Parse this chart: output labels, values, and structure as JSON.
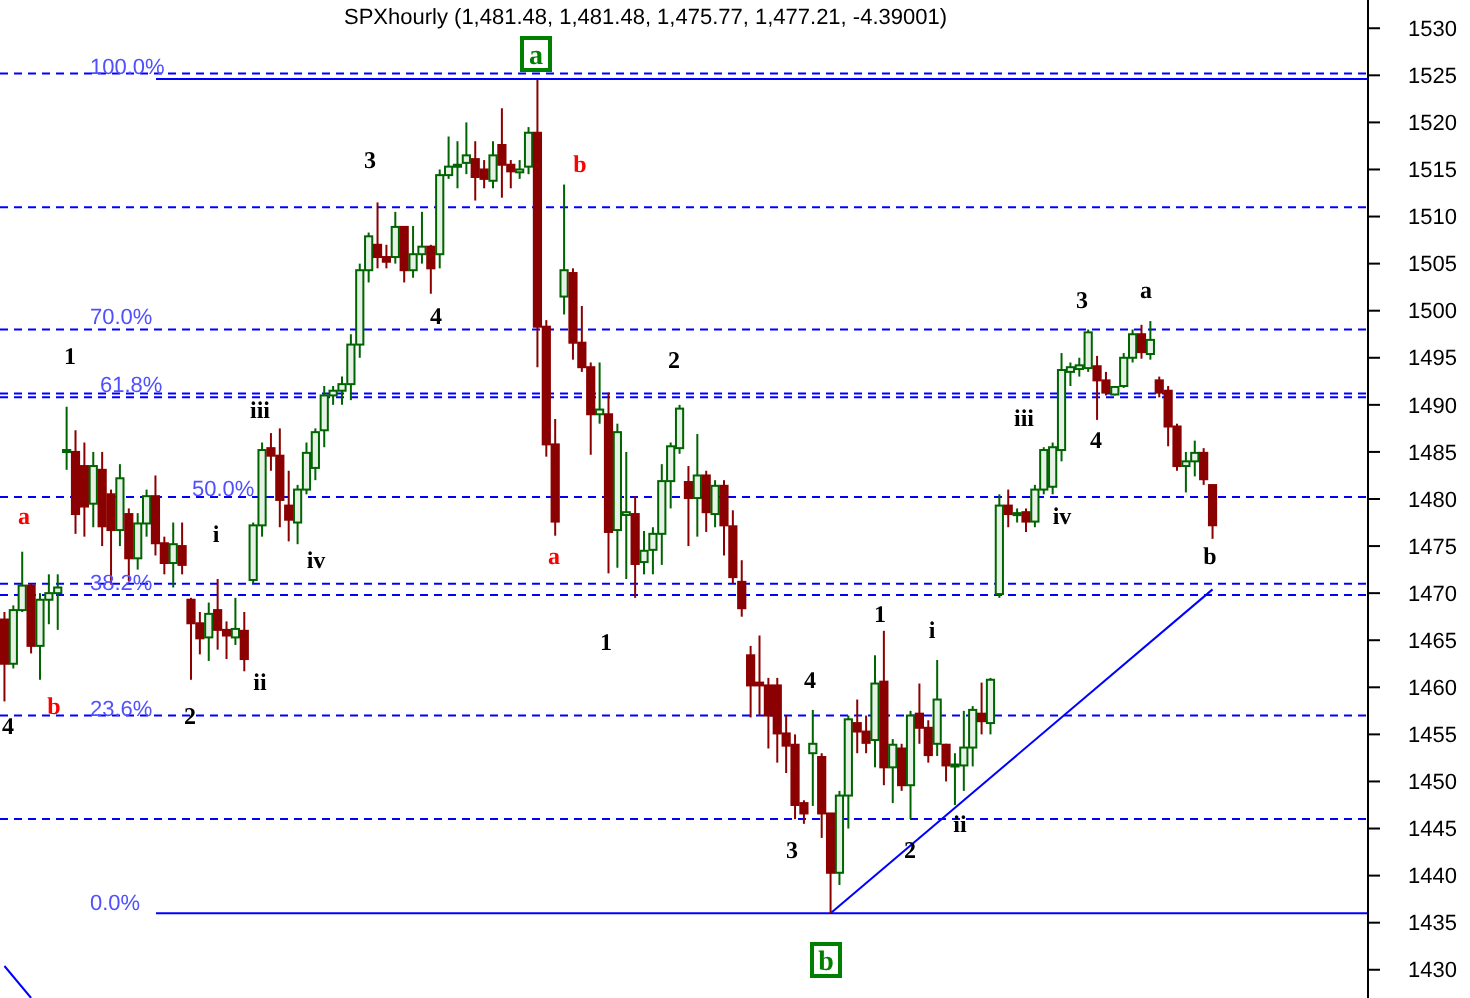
{
  "chart_data": {
    "type": "candlestick",
    "title": "SPXhourly (1,481.48, 1,481.48, 1,475.77, 1,477.21, -4.39001)",
    "categories": [
      null,
      null,
      null,
      null,
      null,
      null,
      null,
      null,
      null,
      null,
      null,
      null,
      null,
      null,
      null,
      null,
      null,
      null,
      null,
      null,
      null,
      null,
      null,
      null,
      null,
      null,
      null,
      null,
      null,
      null,
      null,
      null,
      null,
      null,
      null,
      null,
      null,
      null,
      null,
      null,
      null,
      null,
      null,
      null,
      null,
      null,
      null,
      null,
      null,
      null,
      null,
      null,
      null,
      null,
      null,
      null,
      null,
      null,
      null,
      null,
      null,
      null,
      null,
      null,
      null,
      null,
      null,
      null,
      null,
      null,
      null,
      null,
      null,
      null,
      null,
      null,
      null,
      null,
      null,
      null,
      null,
      null,
      null,
      null,
      null,
      null,
      null,
      null,
      null,
      null,
      null,
      null,
      null,
      null,
      null,
      null,
      null,
      null,
      null,
      null,
      null,
      null,
      null,
      null,
      null,
      null,
      null,
      null,
      null,
      null,
      null,
      null,
      null,
      null,
      null,
      null,
      null,
      null,
      null,
      null,
      null,
      null,
      null,
      null,
      null,
      null,
      null,
      null,
      null,
      null,
      null,
      null,
      null,
      null,
      null,
      null,
      null,
      null,
      null,
      null,
      null,
      null,
      null,
      null,
      null,
      null,
      null,
      null,
      null,
      null,
      null,
      null,
      null,
      null
    ],
    "ohlc": [
      [
        1467.2,
        1468,
        1458.5,
        1462.5
      ],
      [
        1462.5,
        1468.7,
        1462,
        1468.2
      ],
      [
        1468.2,
        1474.4,
        1468,
        1470.8
      ],
      [
        1470.8,
        1471,
        1463.6,
        1464.4
      ],
      [
        1464.4,
        1470,
        1460.8,
        1469.3
      ],
      [
        1469.3,
        1472,
        1466.7,
        1470
      ],
      [
        1470,
        1472,
        1466.1,
        1470.6
      ],
      [
        1485,
        1489.8,
        1483.1,
        1485.2
      ],
      [
        1485,
        1487.3,
        1476.3,
        1478.4
      ],
      [
        1483.5,
        1486,
        1476,
        1479.2
      ],
      [
        1479.5,
        1485,
        1477,
        1483.5
      ],
      [
        1483.1,
        1485,
        1475,
        1477.1
      ],
      [
        1480.5,
        1481,
        1470.9,
        1476.7
      ],
      [
        1476.7,
        1483.7,
        1475,
        1482.2
      ],
      [
        1478.4,
        1479,
        1471.3,
        1473.7
      ],
      [
        1473.7,
        1478.5,
        1472.5,
        1477.4
      ],
      [
        1477.4,
        1481,
        1476,
        1480.3
      ],
      [
        1480.3,
        1482.5,
        1474,
        1475.3
      ],
      [
        1475.3,
        1476,
        1472,
        1473.2
      ],
      [
        1473.2,
        1477.5,
        1470.6,
        1475.2
      ],
      [
        1475,
        1477.5,
        1472,
        1473
      ],
      [
        1469.3,
        1469.5,
        1460.8,
        1466.8
      ],
      [
        1466.8,
        1468,
        1463.5,
        1465.2
      ],
      [
        1465.3,
        1469,
        1462.8,
        1467.8
      ],
      [
        1468.2,
        1471.5,
        1464,
        1466.1
      ],
      [
        1466.1,
        1467,
        1463,
        1465.5
      ],
      [
        1465.3,
        1469.5,
        1464.5,
        1466.2
      ],
      [
        1466,
        1468,
        1461.7,
        1463
      ],
      [
        1471.4,
        1477.5,
        1471,
        1477.2
      ],
      [
        1477.2,
        1486,
        1476,
        1485.2
      ],
      [
        1485.4,
        1487,
        1483,
        1484.6
      ],
      [
        1484.6,
        1487.5,
        1477,
        1479.9
      ],
      [
        1479.3,
        1483,
        1475.5,
        1477.8
      ],
      [
        1477.5,
        1481.5,
        1475.2,
        1481
      ],
      [
        1481,
        1486,
        1480.5,
        1484.9
      ],
      [
        1483.3,
        1487.5,
        1482,
        1487.1
      ],
      [
        1487.3,
        1492,
        1485.5,
        1491
      ],
      [
        1491,
        1492,
        1490,
        1491.5
      ],
      [
        1491.5,
        1493,
        1490,
        1492.2
      ],
      [
        1492.2,
        1497.5,
        1490.5,
        1496.4
      ],
      [
        1496.4,
        1505,
        1495,
        1504.3
      ],
      [
        1504.3,
        1508.3,
        1503,
        1507.9
      ],
      [
        1507,
        1511.5,
        1504.5,
        1505.7
      ],
      [
        1505.7,
        1507,
        1504.5,
        1505.2
      ],
      [
        1505.7,
        1510.5,
        1505,
        1508.9
      ],
      [
        1508.9,
        1509,
        1503,
        1504.3
      ],
      [
        1504.3,
        1509,
        1503.5,
        1506
      ],
      [
        1506,
        1510.5,
        1505,
        1506.8
      ],
      [
        1506.8,
        1507,
        1501.8,
        1504.5
      ],
      [
        1506,
        1515,
        1504.5,
        1514.4
      ],
      [
        1514.4,
        1518.5,
        1514,
        1515.3
      ],
      [
        1515.3,
        1518,
        1513,
        1515.5
      ],
      [
        1515.7,
        1520,
        1514.5,
        1516.5
      ],
      [
        1516.1,
        1518,
        1511.7,
        1514.2
      ],
      [
        1515,
        1516,
        1513,
        1514
      ],
      [
        1513.8,
        1518,
        1513,
        1516.5
      ],
      [
        1517.6,
        1521.5,
        1512,
        1515.5
      ],
      [
        1515.5,
        1516,
        1513,
        1514.8
      ],
      [
        1514.7,
        1516,
        1514,
        1515
      ],
      [
        1515.3,
        1519.5,
        1514.5,
        1518.9
      ],
      [
        1518.9,
        1524.5,
        1494,
        1498.3
      ],
      [
        1498.3,
        1499,
        1484.5,
        1485.8
      ],
      [
        1485.8,
        1488.5,
        1476.1,
        1477.6
      ],
      [
        1501.5,
        1513.4,
        1499.6,
        1504.3
      ],
      [
        1504,
        1504.5,
        1494.8,
        1496.6
      ],
      [
        1496.6,
        1500.5,
        1493.5,
        1494
      ],
      [
        1494,
        1494.5,
        1484.7,
        1489
      ],
      [
        1489,
        1494.5,
        1488,
        1489.5
      ],
      [
        1489,
        1491.3,
        1472.1,
        1476.5
      ],
      [
        1476.7,
        1488,
        1472.7,
        1487.1
      ],
      [
        1478.3,
        1485,
        1471.5,
        1478.6
      ],
      [
        1478.4,
        1480.3,
        1469.5,
        1473.1
      ],
      [
        1473.3,
        1476.6,
        1472,
        1474.5
      ],
      [
        1474.6,
        1477,
        1472,
        1476.3
      ],
      [
        1476.3,
        1483.7,
        1473,
        1481.9
      ],
      [
        1481.9,
        1486,
        1479,
        1485.6
      ],
      [
        1485.4,
        1490,
        1484.8,
        1489.6
      ],
      [
        1481.8,
        1483.5,
        1475,
        1480.1
      ],
      [
        1480.1,
        1486.9,
        1476,
        1482.5
      ],
      [
        1482.5,
        1483,
        1476.5,
        1478.6
      ],
      [
        1478.4,
        1482,
        1477,
        1481.4
      ],
      [
        1481.4,
        1482,
        1474,
        1477.2
      ],
      [
        1477.1,
        1478.8,
        1471,
        1471.7
      ],
      [
        1471.2,
        1473.5,
        1467.5,
        1468.4
      ],
      [
        1463.4,
        1464.4,
        1456.8,
        1460.2
      ],
      [
        1460.5,
        1465.5,
        1457,
        1460.2
      ],
      [
        1460.2,
        1461,
        1453.5,
        1457
      ],
      [
        1460.2,
        1461,
        1452,
        1455.1
      ],
      [
        1455.1,
        1457,
        1450.9,
        1453.8
      ],
      [
        1453.9,
        1455,
        1446,
        1447.5
      ],
      [
        1447.7,
        1448,
        1445.5,
        1446.6
      ],
      [
        1453,
        1457.6,
        1447.4,
        1454
      ],
      [
        1452.6,
        1453,
        1444,
        1446.6
      ],
      [
        1446.6,
        1446.6,
        1436,
        1440.3
      ],
      [
        1440.3,
        1449,
        1439,
        1448.5
      ],
      [
        1448.5,
        1457,
        1445,
        1456.6
      ],
      [
        1456.2,
        1458.7,
        1453,
        1455.3
      ],
      [
        1455.3,
        1457,
        1453,
        1454.1
      ],
      [
        1454.4,
        1463.4,
        1451.5,
        1460.4
      ],
      [
        1460.6,
        1466,
        1449.6,
        1451.5
      ],
      [
        1451.5,
        1454.5,
        1447.7,
        1453.9
      ],
      [
        1453.5,
        1454,
        1449,
        1449.6
      ],
      [
        1449.6,
        1457.5,
        1446,
        1457
      ],
      [
        1457.2,
        1460.4,
        1454,
        1455.7
      ],
      [
        1455.7,
        1456.5,
        1452,
        1452.8
      ],
      [
        1454,
        1462.9,
        1452.7,
        1458.7
      ],
      [
        1453.9,
        1454,
        1450,
        1451.7
      ],
      [
        1451.6,
        1453,
        1447.5,
        1451.8
      ],
      [
        1451.7,
        1457.5,
        1449,
        1453.6
      ],
      [
        1453.6,
        1458,
        1451.6,
        1457.6
      ],
      [
        1457.2,
        1460.5,
        1455,
        1456.4
      ],
      [
        1456.2,
        1461,
        1455,
        1460.8
      ],
      [
        1469.9,
        1480.5,
        1469.5,
        1479.3
      ],
      [
        1479.3,
        1481,
        1477,
        1478.4
      ],
      [
        1478.3,
        1479,
        1477.5,
        1478.5
      ],
      [
        1478.6,
        1479,
        1476.5,
        1477.6
      ],
      [
        1477.6,
        1481.5,
        1477,
        1481
      ],
      [
        1481,
        1485.5,
        1480.5,
        1485.2
      ],
      [
        1481.3,
        1486,
        1480.5,
        1485.5
      ],
      [
        1485.2,
        1495.5,
        1484,
        1493.7
      ],
      [
        1493.5,
        1494.5,
        1492,
        1494
      ],
      [
        1493.8,
        1495,
        1493,
        1494.2
      ],
      [
        1493.9,
        1498,
        1493.5,
        1497.7
      ],
      [
        1494.1,
        1495.2,
        1488.4,
        1492.6
      ],
      [
        1492.6,
        1493.5,
        1491,
        1491.3
      ],
      [
        1491.1,
        1492,
        1491,
        1491.9
      ],
      [
        1492,
        1495.5,
        1491.8,
        1495
      ],
      [
        1495,
        1498,
        1494.5,
        1497.5
      ],
      [
        1497.5,
        1498.5,
        1494.9,
        1495.6
      ],
      [
        1495.4,
        1498.9,
        1494.8,
        1496.9
      ],
      [
        1492.6,
        1493,
        1490.8,
        1491.3
      ],
      [
        1491.5,
        1492,
        1485.6,
        1487.7
      ],
      [
        1487.7,
        1488,
        1483,
        1483.5
      ],
      [
        1483.5,
        1485,
        1480.7,
        1484
      ],
      [
        1484,
        1486.2,
        1482.4,
        1484.9
      ],
      [
        1484.9,
        1485.4,
        1481.5,
        1482.1
      ],
      [
        1481.48,
        1481.48,
        1475.77,
        1477.21
      ],
      null,
      null,
      null,
      null,
      null,
      null,
      null,
      null,
      null,
      null,
      null,
      null,
      null,
      null,
      null,
      null,
      null
    ],
    "series": [
      {
        "type": "line",
        "color": "#0000ff",
        "values": [
          null,
          null,
          null,
          null,
          null,
          null,
          null,
          null,
          null,
          null,
          null,
          null,
          null,
          null,
          null,
          null,
          null,
          null,
          null,
          null,
          null,
          null,
          null,
          null,
          null,
          null,
          null,
          null,
          null,
          null,
          null,
          null,
          null,
          null,
          null,
          null,
          null,
          null,
          null,
          null,
          null,
          null,
          null,
          null,
          null,
          null,
          null,
          null,
          null,
          null,
          null,
          null,
          null,
          null,
          null,
          null,
          null,
          null,
          null,
          null,
          null,
          null,
          null,
          null,
          null,
          null,
          null,
          null,
          null,
          null,
          null,
          null,
          null,
          null,
          null,
          null,
          null,
          null,
          null,
          null,
          null,
          null,
          null,
          null,
          null,
          null,
          null,
          null,
          null,
          null,
          null,
          null,
          null,
          1436,
          null,
          null,
          null,
          null,
          null,
          null,
          null,
          null,
          null,
          null,
          null,
          null,
          null,
          null,
          null,
          null,
          null,
          null,
          null,
          null,
          null,
          null,
          null,
          null,
          null,
          null,
          null,
          null,
          null,
          null,
          null,
          null,
          null,
          null,
          null,
          null,
          null,
          null,
          null,
          null,
          null,
          null,
          1470.4,
          null,
          null,
          null,
          null,
          null,
          null,
          null,
          null,
          null,
          null,
          null,
          null,
          null,
          null,
          null,
          null,
          null
        ]
      },
      {
        "type": "line",
        "color": "#0000ff",
        "values": [
          1430.4,
          null,
          null,
          1427,
          null,
          null,
          null,
          null,
          null,
          null,
          null,
          null,
          null,
          null,
          null,
          null,
          null,
          null,
          null,
          null,
          null,
          null,
          null,
          null,
          null,
          null,
          null,
          null,
          null,
          null,
          null,
          null,
          null,
          null,
          null,
          null,
          null,
          null,
          null,
          null,
          null,
          null,
          null,
          null,
          null,
          null,
          null,
          null,
          null,
          null,
          null,
          null,
          null,
          null,
          null,
          null,
          null,
          null,
          null,
          null,
          null,
          null,
          null,
          null,
          null,
          null,
          null,
          null,
          null,
          null,
          null,
          null,
          null,
          null,
          null,
          null,
          null,
          null,
          null,
          null,
          null,
          null,
          null,
          null,
          null,
          null,
          null,
          null,
          null,
          null,
          null,
          null,
          null,
          null,
          null,
          null,
          null,
          null,
          null,
          null,
          null,
          null,
          null,
          null,
          null,
          null,
          null,
          null,
          null,
          null,
          null,
          null,
          null,
          null,
          null,
          null,
          null,
          null,
          null,
          null,
          null,
          null,
          null,
          null,
          null,
          null,
          null,
          null,
          null,
          null,
          null,
          null,
          null,
          null,
          null,
          null,
          null,
          null,
          null,
          null,
          null,
          null,
          null,
          null,
          null,
          null,
          null,
          null,
          null,
          null,
          null,
          null,
          null,
          null
        ]
      }
    ],
    "ylim": [
      1427,
      1533
    ],
    "yticks": [
      1430,
      1435,
      1440,
      1445,
      1450,
      1455,
      1460,
      1465,
      1470,
      1475,
      1480,
      1485,
      1490,
      1495,
      1500,
      1505,
      1510,
      1515,
      1520,
      1525,
      1530
    ],
    "tick_labels": "y",
    "grid": false,
    "ref_lines": [
      {
        "axis": "y",
        "value": 1525.2,
        "label": null,
        "color": "#0000ff",
        "line_style": "dashed"
      },
      {
        "axis": "y",
        "value": 1524.6,
        "label": null,
        "color": "#0000ff",
        "line_style": "solid"
      },
      {
        "axis": "y",
        "value": 1511,
        "label": null,
        "color": "#0000ff",
        "line_style": "dashed"
      },
      {
        "axis": "y",
        "value": 1498,
        "label": null,
        "color": "#0000ff",
        "line_style": "dashed"
      },
      {
        "axis": "y",
        "value": 1491.2,
        "label": null,
        "color": "#0000ff",
        "line_style": "dashed"
      },
      {
        "axis": "y",
        "value": 1490.8,
        "label": null,
        "color": "#0000ff",
        "line_style": "dashed"
      },
      {
        "axis": "y",
        "value": 1480.2,
        "label": null,
        "color": "#0000ff",
        "line_style": "dashed"
      },
      {
        "axis": "y",
        "value": 1471,
        "label": null,
        "color": "#0000ff",
        "line_style": "dashed"
      },
      {
        "axis": "y",
        "value": 1469.8,
        "label": null,
        "color": "#0000ff",
        "line_style": "dashed"
      },
      {
        "axis": "y",
        "value": 1457,
        "label": null,
        "color": "#0000ff",
        "line_style": "dashed"
      },
      {
        "axis": "y",
        "value": 1446,
        "label": null,
        "color": "#0000ff",
        "line_style": "dashed"
      },
      {
        "axis": "y",
        "value": 1436,
        "label": null,
        "color": "#0000ff",
        "line_style": "solid"
      }
    ],
    "annotations": [
      "1",
      "a",
      "b",
      "4",
      "3",
      "4",
      "iii",
      "i",
      "iv",
      "2",
      "ii",
      "a",
      "b",
      "a",
      "2",
      "1",
      "4",
      "1",
      "i",
      "3",
      "2",
      "ii",
      "b",
      "3",
      "a",
      "iii",
      "4",
      "iv",
      "b",
      "100.0%",
      "70.0%",
      "61.8%",
      "50.0%",
      "38.2%",
      "23.6%",
      "0.0%"
    ]
  }
}
